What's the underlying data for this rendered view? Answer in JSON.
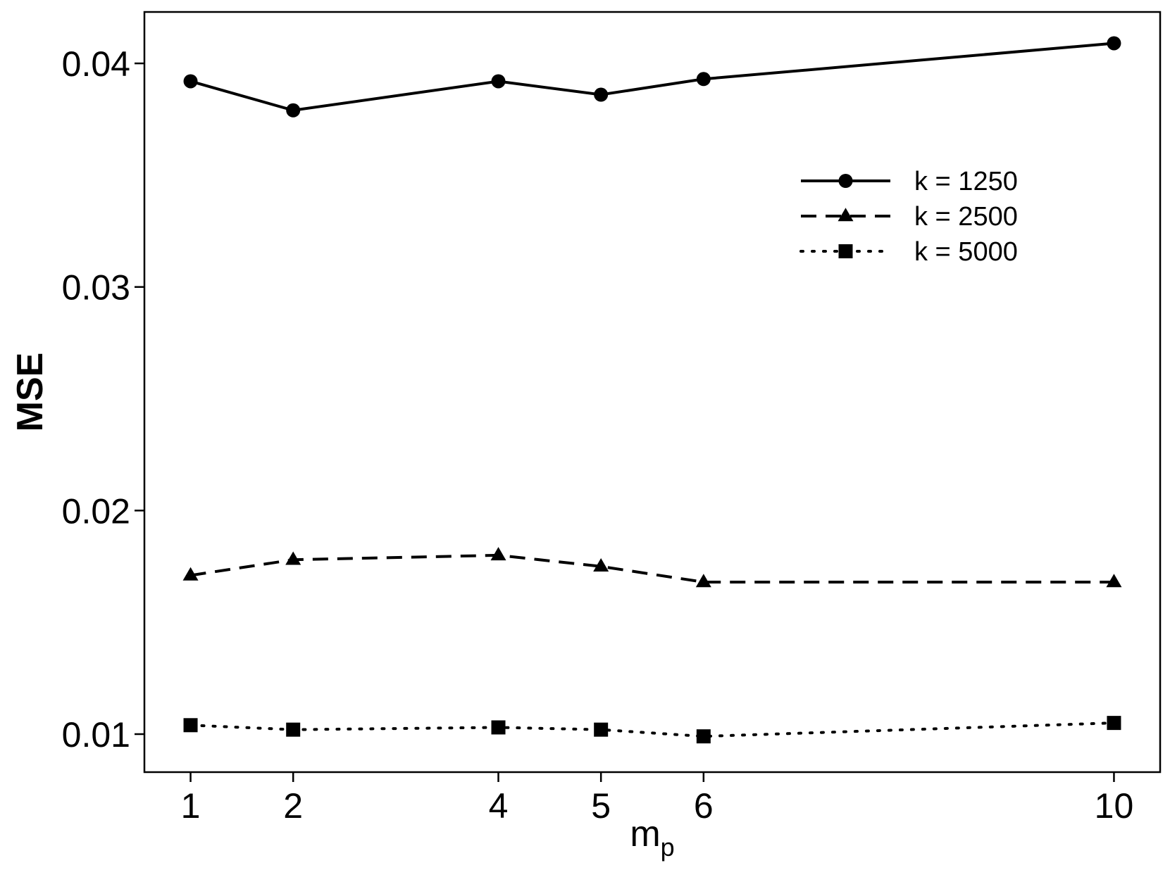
{
  "chart_data": {
    "type": "line",
    "title": "",
    "xlabel": "m",
    "xlabel_subscript": "p",
    "ylabel": "MSE",
    "x": [
      1,
      2,
      4,
      5,
      6,
      10
    ],
    "xticks": [
      "1",
      "2",
      "4",
      "5",
      "6",
      "10"
    ],
    "yticks": [
      "0.01",
      "0.02",
      "0.03",
      "0.04"
    ],
    "ytick_values": [
      0.01,
      0.02,
      0.03,
      0.04
    ],
    "xlim": [
      0.55,
      10.45
    ],
    "ylim": [
      0.0083,
      0.0423
    ],
    "grid": false,
    "legend_position": "top-right",
    "series": [
      {
        "name": "k = 1250",
        "values": [
          0.0392,
          0.0379,
          0.0392,
          0.0386,
          0.0393,
          0.0409
        ],
        "line_style": "solid",
        "marker": "circle"
      },
      {
        "name": "k = 2500",
        "values": [
          0.0171,
          0.0178,
          0.018,
          0.0175,
          0.0168,
          0.0168
        ],
        "line_style": "dashed",
        "marker": "triangle"
      },
      {
        "name": "k = 5000",
        "values": [
          0.0104,
          0.0102,
          0.0103,
          0.0102,
          0.0099,
          0.0105
        ],
        "line_style": "dotted",
        "marker": "square"
      }
    ],
    "colors": {
      "line": "#000000",
      "background": "#ffffff"
    }
  }
}
